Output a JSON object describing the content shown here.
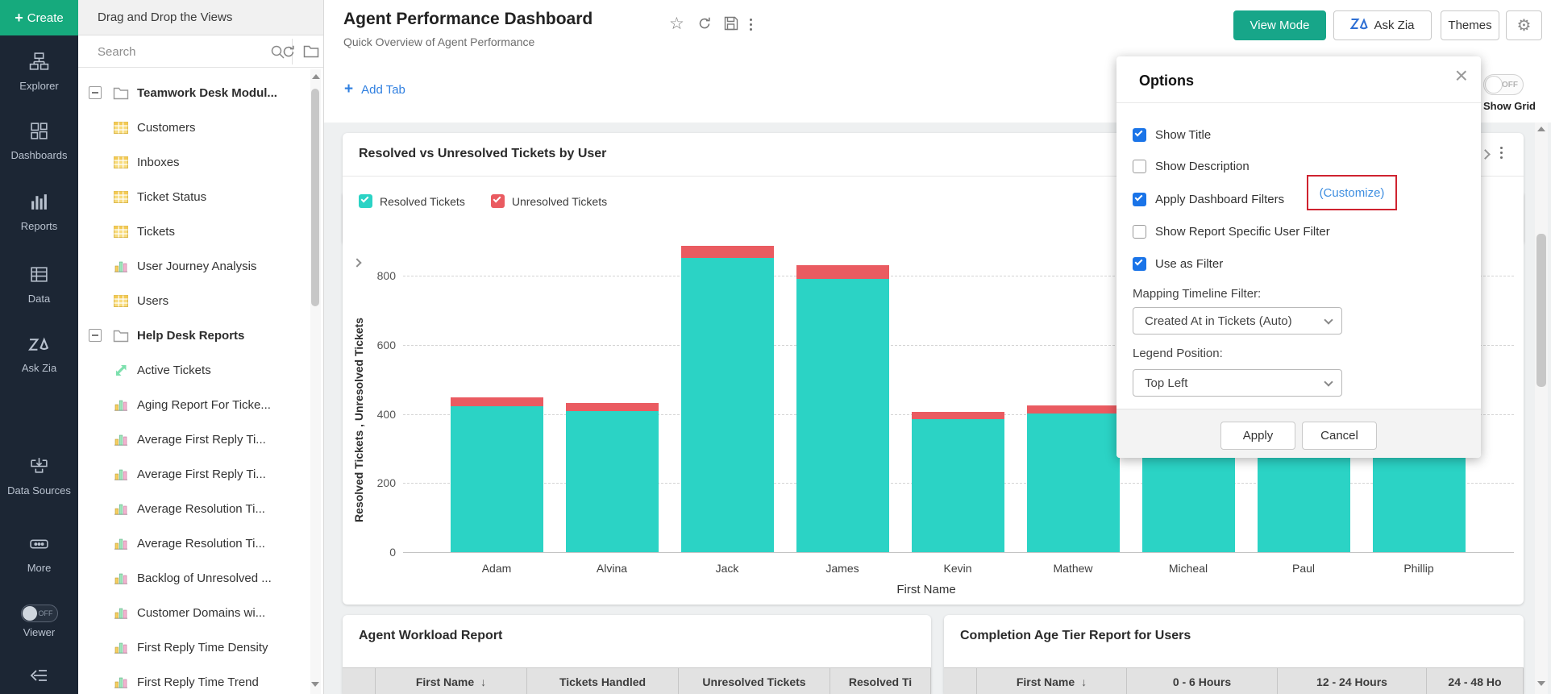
{
  "sidebar": {
    "create_label": "Create",
    "items": [
      {
        "label": "Explorer",
        "icon": "explorer"
      },
      {
        "label": "Dashboards",
        "icon": "dashboards"
      },
      {
        "label": "Reports",
        "icon": "reports"
      },
      {
        "label": "Data",
        "icon": "data"
      },
      {
        "label": "Ask Zia",
        "icon": "ask-zia"
      },
      {
        "label": "Data Sources",
        "icon": "data-sources"
      },
      {
        "label": "More",
        "icon": "more"
      }
    ],
    "viewer_label": "Viewer",
    "viewer_state": "OFF"
  },
  "panel": {
    "header": "Drag and Drop the Views",
    "search_placeholder": "Search",
    "tree": [
      {
        "label": "Teamwork Desk Modul...",
        "icon": "folder",
        "bold": true,
        "expander": true
      },
      {
        "label": "Customers",
        "icon": "table"
      },
      {
        "label": "Inboxes",
        "icon": "table"
      },
      {
        "label": "Ticket Status",
        "icon": "table"
      },
      {
        "label": "Tickets",
        "icon": "table"
      },
      {
        "label": "User Journey Analysis",
        "icon": "chart"
      },
      {
        "label": "Users",
        "icon": "table"
      },
      {
        "label": "Help Desk Reports",
        "icon": "folder",
        "bold": true,
        "expander": true
      },
      {
        "label": "Active Tickets",
        "icon": "trend"
      },
      {
        "label": "Aging Report For Ticke...",
        "icon": "chart"
      },
      {
        "label": "Average First Reply Ti...",
        "icon": "chart"
      },
      {
        "label": "Average First Reply Ti...",
        "icon": "chart"
      },
      {
        "label": "Average Resolution Ti...",
        "icon": "chart"
      },
      {
        "label": "Average Resolution Ti...",
        "icon": "chart"
      },
      {
        "label": "Backlog of Unresolved ...",
        "icon": "chart"
      },
      {
        "label": "Customer Domains wi...",
        "icon": "chart"
      },
      {
        "label": "First Reply Time Density",
        "icon": "chart"
      },
      {
        "label": "First Reply Time Trend",
        "icon": "chart"
      }
    ]
  },
  "header": {
    "title": "Agent Performance Dashboard",
    "subtitle": "Quick Overview of Agent Performance",
    "view_mode_label": "View Mode",
    "ask_zia_label": "Ask Zia",
    "themes_label": "Themes"
  },
  "tabbar": {
    "add_tab_label": "Add Tab"
  },
  "canvas": {
    "show_grid_label": "Show Grid",
    "show_grid_state": "OFF"
  },
  "chart_card": {
    "title": "Resolved vs Unresolved Tickets by User"
  },
  "chart_data": {
    "type": "bar",
    "stacked": true,
    "categories": [
      "Adam",
      "Alvina",
      "Jack",
      "James",
      "Kevin",
      "Mathew",
      "Micheal",
      "Paul",
      "Phillip"
    ],
    "series": [
      {
        "name": "Resolved Tickets",
        "color": "#2bd3c5",
        "values": [
          421,
          407,
          851,
          790,
          385,
          402,
          410,
          415,
          420
        ]
      },
      {
        "name": "Unresolved Tickets",
        "color": "#ea5b61",
        "values": [
          26,
          23,
          35,
          40,
          22,
          23,
          25,
          25,
          25
        ]
      }
    ],
    "title": "Resolved vs Unresolved Tickets by User",
    "xlabel": "First Name",
    "ylabel": "Resolved Tickets , Unresolved Tickets",
    "ylim": [
      0,
      900
    ],
    "yticks": [
      0,
      200,
      400,
      600,
      800
    ],
    "grid": "dashed-horizontal",
    "legend_position": "top-left"
  },
  "options": {
    "title": "Options",
    "checkboxes": [
      {
        "label": "Show Title",
        "checked": true
      },
      {
        "label": "Show Description",
        "checked": false
      },
      {
        "label": "Apply Dashboard Filters",
        "checked": true
      },
      {
        "label": "Show Report Specific User Filter",
        "checked": false
      },
      {
        "label": "Use as Filter",
        "checked": true
      }
    ],
    "customize_link": "(Customize)",
    "mapping_label": "Mapping Timeline Filter:",
    "mapping_value": "Created At in Tickets (Auto)",
    "legend_label": "Legend Position:",
    "legend_value": "Top Left",
    "apply_label": "Apply",
    "cancel_label": "Cancel"
  },
  "tables": {
    "left": {
      "title": "Agent Workload Report",
      "columns": [
        "",
        "First Name",
        "Tickets Handled",
        "Unresolved Tickets",
        "Resolved Ti"
      ],
      "sort_column": "First Name"
    },
    "right": {
      "title": "Completion Age Tier Report for Users",
      "columns": [
        "",
        "First Name",
        "0 - 6 Hours",
        "12 - 24 Hours",
        "24 - 48 Ho"
      ],
      "sort_column": "First Name"
    }
  },
  "colors": {
    "brand_teal": "#16aa7d",
    "button_teal": "#17a689",
    "resolved_teal": "#2bd3c5",
    "unresolved_red": "#ea5b61",
    "checkbox_blue": "#1a74e8",
    "link_blue": "#2f7fe0",
    "highlight_red": "#cf2330",
    "sidebar_navy": "#1c2634"
  }
}
